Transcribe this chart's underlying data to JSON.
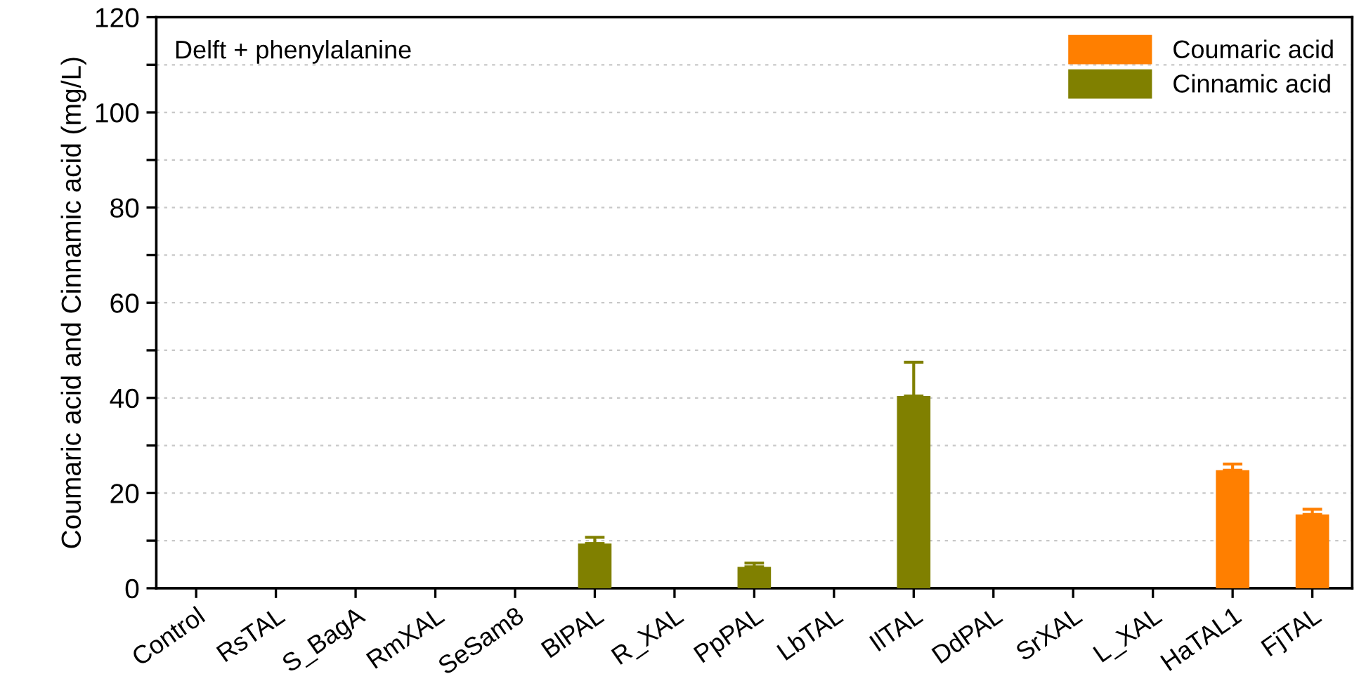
{
  "chart_data": {
    "type": "bar",
    "ylabel": "Coumaric acid and Cinnamic acid (mg/L)",
    "categories": [
      "Control",
      "RsTAL",
      "S_BagA",
      "RmXAL",
      "SeSam8",
      "BlPAL",
      "R_XAL",
      "PpPAL",
      "LbTAL",
      "IlTAL",
      "DdPAL",
      "SrXAL",
      "L_XAL",
      "HaTAL1",
      "FjTAL"
    ],
    "series": [
      {
        "name": "Coumaric acid",
        "color": "#ff7f00",
        "values": [
          null,
          null,
          null,
          null,
          null,
          null,
          null,
          null,
          null,
          null,
          null,
          null,
          null,
          24.8,
          15.5
        ],
        "errors": [
          null,
          null,
          null,
          null,
          null,
          null,
          null,
          null,
          null,
          null,
          null,
          null,
          null,
          [
            24.8,
            26.1
          ],
          [
            15.5,
            16.6
          ]
        ]
      },
      {
        "name": "Cinnamic acid",
        "color": "#808000",
        "values": [
          null,
          null,
          null,
          null,
          null,
          9.4,
          null,
          4.5,
          null,
          40.4,
          null,
          null,
          null,
          null,
          null
        ],
        "errors": [
          null,
          null,
          null,
          null,
          null,
          [
            9.4,
            10.7
          ],
          null,
          [
            4.5,
            5.3
          ],
          null,
          [
            40.4,
            47.5
          ],
          null,
          null,
          null,
          null,
          null
        ]
      }
    ],
    "ylim": [
      0,
      120
    ],
    "yticks": [
      0,
      {
        "value": 10,
        "label": null
      },
      20,
      {
        "value": 30,
        "label": null
      },
      40,
      {
        "value": 50,
        "label": null
      },
      60,
      {
        "value": 70,
        "label": null
      },
      80,
      {
        "value": 90,
        "label": null
      },
      100,
      {
        "value": 110,
        "label": null
      },
      120
    ],
    "grid": "y",
    "legend": "top right",
    "annotations": [
      "Delft + phenylalanine"
    ]
  }
}
